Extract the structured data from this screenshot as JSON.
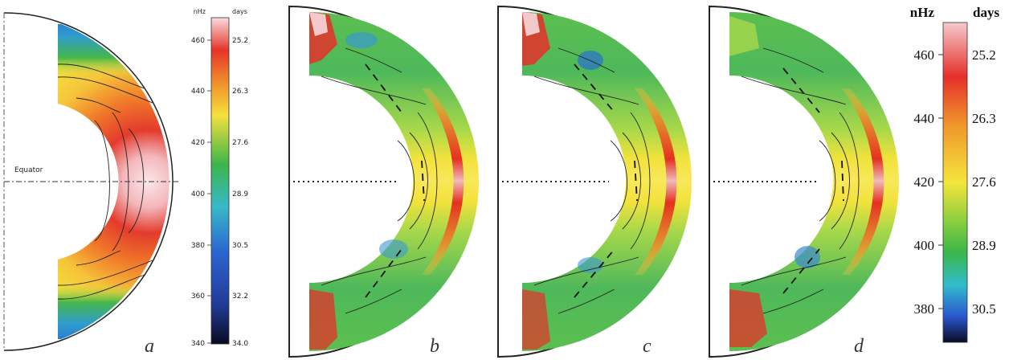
{
  "panels": [
    {
      "id": "a",
      "label": "a",
      "equator_text": "Equator"
    },
    {
      "id": "b",
      "label": "b"
    },
    {
      "id": "c",
      "label": "c"
    },
    {
      "id": "d",
      "label": "d"
    }
  ],
  "colorbar_small": {
    "left_header": "nHz",
    "right_header": "days",
    "nhz_ticks": [
      "460",
      "440",
      "420",
      "400",
      "380",
      "360",
      "340"
    ],
    "day_ticks": [
      "25.2",
      "26.3",
      "27.6",
      "28.9",
      "30.5",
      "32.2",
      "34.0"
    ]
  },
  "colorbar_large": {
    "left_header": "nHz",
    "right_header": "days",
    "nhz_ticks": [
      "460",
      "440",
      "420",
      "400",
      "380"
    ],
    "day_ticks": [
      "25.2",
      "26.3",
      "27.6",
      "28.9",
      "30.5"
    ]
  },
  "colors": {
    "pale_pink": "#f3c9cb",
    "red": "#e2281f",
    "orange": "#f08a2a",
    "yellow": "#f2e63a",
    "green": "#4cb84a",
    "cyan": "#35b8c8",
    "blue": "#2a5fcc",
    "dark": "#101030"
  }
}
